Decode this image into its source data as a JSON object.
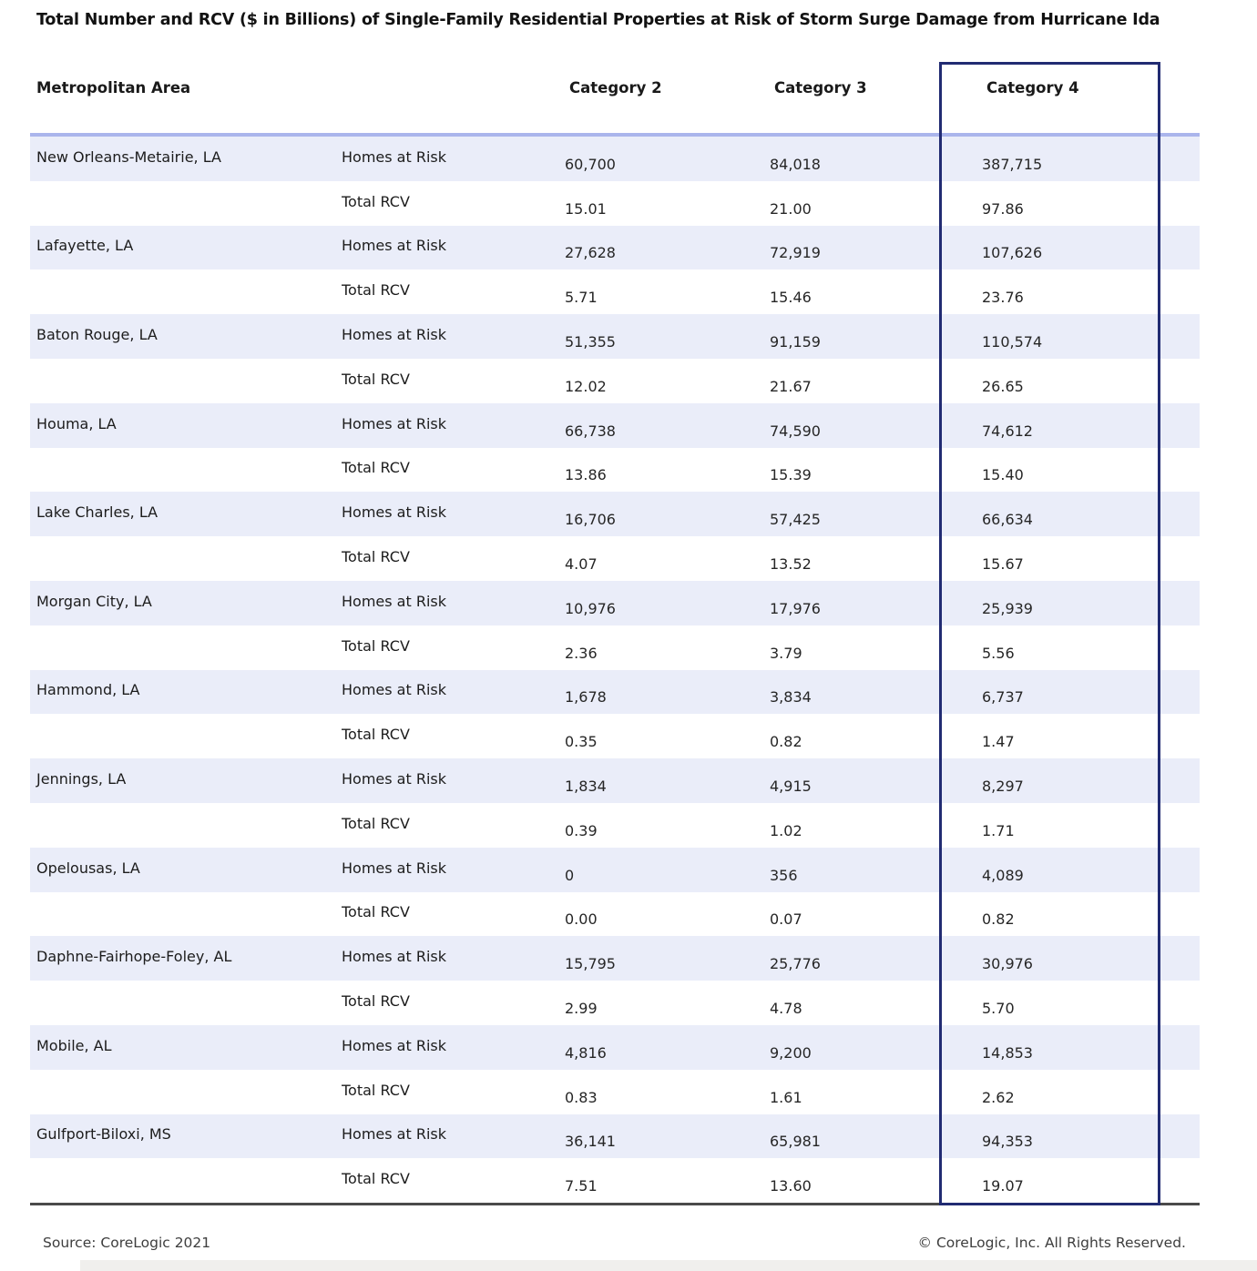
{
  "title": "Total Number and RCV ($ in Billions) of Single-Family Residential Properties at Risk of Storm Surge Damage from Hurricane Ida",
  "footer": {
    "source": "Source: CoreLogic 2021",
    "copyright": "© CoreLogic, Inc. All Rights Reserved."
  },
  "colors": {
    "band": "#eaedf9",
    "top_border": "#aab5ec",
    "box_border": "#212b72",
    "bottom_rule": "#4a4a4a"
  },
  "chart_data": {
    "type": "table",
    "title": "Total Number and RCV ($ in Billions) of Single-Family Residential Properties at Risk of Storm Surge Damage from Hurricane Ida",
    "column_headers": [
      "Metropolitan Area",
      "Category 2",
      "Category 3",
      "Category 4"
    ],
    "row_metric_labels": [
      "Homes at Risk",
      "Total RCV"
    ],
    "highlighted_column": "Category 4",
    "rcv_units": "$ in Billions",
    "rows": [
      {
        "metro": "New Orleans-Metairie, LA",
        "homes_at_risk": [
          "60,700",
          "84,018",
          "387,715"
        ],
        "total_rcv": [
          "15.01",
          "21.00",
          "97.86"
        ]
      },
      {
        "metro": "Lafayette, LA",
        "homes_at_risk": [
          "27,628",
          "72,919",
          "107,626"
        ],
        "total_rcv": [
          "5.71",
          "15.46",
          "23.76"
        ]
      },
      {
        "metro": "Baton Rouge, LA",
        "homes_at_risk": [
          "51,355",
          "91,159",
          "110,574"
        ],
        "total_rcv": [
          "12.02",
          "21.67",
          "26.65"
        ]
      },
      {
        "metro": "Houma, LA",
        "homes_at_risk": [
          "66,738",
          "74,590",
          "74,612"
        ],
        "total_rcv": [
          "13.86",
          "15.39",
          "15.40"
        ]
      },
      {
        "metro": "Lake Charles, LA",
        "homes_at_risk": [
          "16,706",
          "57,425",
          "66,634"
        ],
        "total_rcv": [
          "4.07",
          "13.52",
          "15.67"
        ]
      },
      {
        "metro": "Morgan City, LA",
        "homes_at_risk": [
          "10,976",
          "17,976",
          "25,939"
        ],
        "total_rcv": [
          "2.36",
          "3.79",
          "5.56"
        ]
      },
      {
        "metro": "Hammond, LA",
        "homes_at_risk": [
          "1,678",
          "3,834",
          "6,737"
        ],
        "total_rcv": [
          "0.35",
          "0.82",
          "1.47"
        ]
      },
      {
        "metro": "Jennings, LA",
        "homes_at_risk": [
          "1,834",
          "4,915",
          "8,297"
        ],
        "total_rcv": [
          "0.39",
          "1.02",
          "1.71"
        ]
      },
      {
        "metro": "Opelousas, LA",
        "homes_at_risk": [
          "0",
          "356",
          "4,089"
        ],
        "total_rcv": [
          "0.00",
          "0.07",
          "0.82"
        ]
      },
      {
        "metro": "Daphne-Fairhope-Foley, AL",
        "homes_at_risk": [
          "15,795",
          "25,776",
          "30,976"
        ],
        "total_rcv": [
          "2.99",
          "4.78",
          "5.70"
        ]
      },
      {
        "metro": "Mobile, AL",
        "homes_at_risk": [
          "4,816",
          "9,200",
          "14,853"
        ],
        "total_rcv": [
          "0.83",
          "1.61",
          "2.62"
        ]
      },
      {
        "metro": "Gulfport-Biloxi, MS",
        "homes_at_risk": [
          "36,141",
          "65,981",
          "94,353"
        ],
        "total_rcv": [
          "7.51",
          "13.60",
          "19.07"
        ]
      }
    ]
  }
}
